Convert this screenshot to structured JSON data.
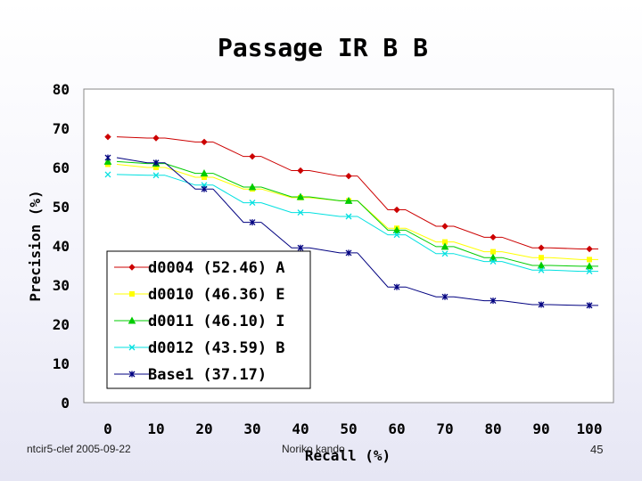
{
  "chart_data": {
    "type": "line",
    "title": "Passage IR B B",
    "xlabel": "Recall (%)",
    "ylabel": "Precision (%)",
    "x": [
      0,
      10,
      20,
      30,
      40,
      50,
      60,
      70,
      80,
      90,
      100
    ],
    "xlim": [
      0,
      100
    ],
    "ylim": [
      0,
      80
    ],
    "yticks": [
      0,
      10,
      20,
      30,
      40,
      50,
      60,
      70,
      80
    ],
    "xticks": [
      0,
      10,
      20,
      30,
      40,
      50,
      60,
      70,
      80,
      90,
      100
    ],
    "grid": false,
    "legend_position": "lower-left",
    "series": [
      {
        "name": "d0004 (52.46) A",
        "color": "#cc0000",
        "marker": "diamond",
        "values": [
          67.8,
          67.5,
          66.5,
          62.8,
          59.2,
          57.8,
          49.2,
          45.0,
          42.2,
          39.5,
          39.2
        ]
      },
      {
        "name": "d0010 (46.36) E",
        "color": "#ffff00",
        "marker": "square",
        "values": [
          60.8,
          60.0,
          57.5,
          54.5,
          52.3,
          51.5,
          44.5,
          41.0,
          38.5,
          37.0,
          36.5
        ]
      },
      {
        "name": "d0011 (46.10) I",
        "color": "#00cc00",
        "marker": "triangle",
        "values": [
          61.5,
          61.0,
          58.5,
          55.0,
          52.5,
          51.5,
          44.0,
          39.8,
          37.0,
          35.0,
          34.8
        ]
      },
      {
        "name": "d0012 (43.59) B",
        "color": "#00e0e0",
        "marker": "x",
        "values": [
          58.2,
          58.0,
          55.5,
          51.0,
          48.5,
          47.5,
          42.8,
          38.0,
          36.0,
          33.8,
          33.5
        ]
      },
      {
        "name": "Base1 (37.17)",
        "color": "#000080",
        "marker": "star",
        "values": [
          62.5,
          61.2,
          54.5,
          46.0,
          39.5,
          38.2,
          29.5,
          27.0,
          26.0,
          25.0,
          24.8
        ]
      }
    ]
  },
  "footer": {
    "left": "ntcir5-clef  2005-09-22",
    "center": "Noriko kando",
    "page_number": "45"
  }
}
